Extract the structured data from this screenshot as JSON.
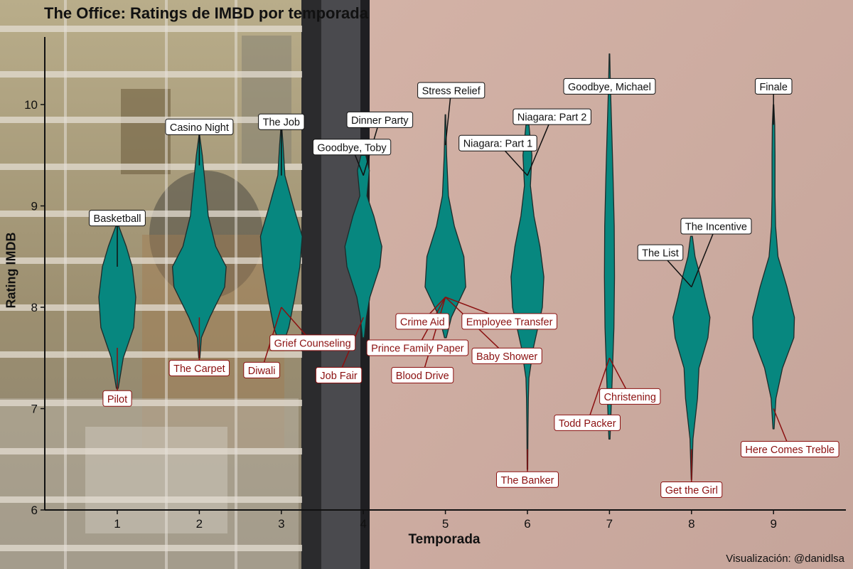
{
  "title": "The Office: Ratings de IMBD por temporada",
  "caption": "Visualización: @danidlsa",
  "colors": {
    "violin_fill": "#07877f",
    "violin_stroke": "#1d2b2a",
    "label_high": "#111111",
    "label_low": "#8b1010",
    "axis": "#111111"
  },
  "chart_data": {
    "type": "violin",
    "title": "The Office: Ratings de IMBD por temporada",
    "xlabel": "Temporada",
    "ylabel": "Rating IMDB",
    "ylim": [
      6,
      10.5
    ],
    "yticks": [
      6,
      7,
      8,
      9,
      10
    ],
    "categories": [
      "1",
      "2",
      "3",
      "4",
      "5",
      "6",
      "7",
      "8",
      "9"
    ],
    "series": [
      {
        "season": 1,
        "min": 7.2,
        "max": 8.8,
        "profile": [
          [
            7.2,
            0.03
          ],
          [
            7.5,
            0.2
          ],
          [
            7.8,
            0.55
          ],
          [
            8.1,
            0.62
          ],
          [
            8.4,
            0.5
          ],
          [
            8.6,
            0.3
          ],
          [
            8.8,
            0.05
          ]
        ]
      },
      {
        "season": 2,
        "min": 7.5,
        "max": 9.7,
        "profile": [
          [
            7.5,
            0.02
          ],
          [
            7.7,
            0.07
          ],
          [
            7.9,
            0.35
          ],
          [
            8.2,
            0.85
          ],
          [
            8.4,
            0.9
          ],
          [
            8.6,
            0.55
          ],
          [
            8.9,
            0.3
          ],
          [
            9.2,
            0.2
          ],
          [
            9.5,
            0.1
          ],
          [
            9.7,
            0.01
          ]
        ]
      },
      {
        "season": 3,
        "min": 7.6,
        "max": 9.8,
        "profile": [
          [
            7.6,
            0.02
          ],
          [
            7.8,
            0.25
          ],
          [
            8.1,
            0.45
          ],
          [
            8.4,
            0.62
          ],
          [
            8.7,
            0.7
          ],
          [
            9.0,
            0.4
          ],
          [
            9.3,
            0.12
          ],
          [
            9.6,
            0.06
          ],
          [
            9.8,
            0.01
          ]
        ]
      },
      {
        "season": 4,
        "min": 7.7,
        "max": 9.5,
        "profile": [
          [
            7.7,
            0.03
          ],
          [
            7.9,
            0.1
          ],
          [
            8.1,
            0.22
          ],
          [
            8.4,
            0.55
          ],
          [
            8.6,
            0.62
          ],
          [
            8.9,
            0.35
          ],
          [
            9.1,
            0.12
          ],
          [
            9.35,
            0.2
          ],
          [
            9.5,
            0.08
          ]
        ]
      },
      {
        "season": 5,
        "min": 7.7,
        "max": 9.9,
        "profile": [
          [
            7.7,
            0.03
          ],
          [
            7.9,
            0.2
          ],
          [
            8.2,
            0.68
          ],
          [
            8.5,
            0.62
          ],
          [
            8.8,
            0.3
          ],
          [
            9.1,
            0.1
          ],
          [
            9.5,
            0.04
          ],
          [
            9.9,
            0.01
          ]
        ]
      },
      {
        "season": 6,
        "min": 6.4,
        "max": 9.8,
        "profile": [
          [
            6.4,
            0.01
          ],
          [
            6.8,
            0.02
          ],
          [
            7.1,
            0.03
          ],
          [
            7.3,
            0.05
          ],
          [
            7.6,
            0.2
          ],
          [
            8.0,
            0.5
          ],
          [
            8.3,
            0.55
          ],
          [
            8.6,
            0.42
          ],
          [
            8.9,
            0.22
          ],
          [
            9.2,
            0.1
          ],
          [
            9.5,
            0.15
          ],
          [
            9.8,
            0.05
          ]
        ]
      },
      {
        "season": 7,
        "min": 6.7,
        "max": 10.5,
        "profile": [
          [
            6.7,
            0.02
          ],
          [
            7.2,
            0.08
          ],
          [
            7.8,
            0.15
          ],
          [
            8.3,
            0.17
          ],
          [
            8.8,
            0.16
          ],
          [
            9.3,
            0.12
          ],
          [
            9.7,
            0.08
          ],
          [
            10.2,
            0.03
          ],
          [
            10.5,
            0.01
          ]
        ]
      },
      {
        "season": 8,
        "min": 6.3,
        "max": 8.7,
        "profile": [
          [
            6.3,
            0.01
          ],
          [
            6.7,
            0.05
          ],
          [
            7.1,
            0.2
          ],
          [
            7.4,
            0.25
          ],
          [
            7.7,
            0.55
          ],
          [
            7.9,
            0.62
          ],
          [
            8.1,
            0.45
          ],
          [
            8.3,
            0.3
          ],
          [
            8.5,
            0.12
          ],
          [
            8.7,
            0.03
          ]
        ]
      },
      {
        "season": 9,
        "min": 6.8,
        "max": 10.0,
        "profile": [
          [
            6.8,
            0.02
          ],
          [
            7.1,
            0.08
          ],
          [
            7.4,
            0.3
          ],
          [
            7.7,
            0.68
          ],
          [
            7.9,
            0.7
          ],
          [
            8.2,
            0.45
          ],
          [
            8.5,
            0.15
          ],
          [
            8.8,
            0.07
          ],
          [
            9.1,
            0.05
          ],
          [
            9.5,
            0.05
          ],
          [
            9.8,
            0.04
          ],
          [
            10.0,
            0.01
          ]
        ]
      }
    ],
    "annotations": [
      {
        "text": "Basketball",
        "kind": "high",
        "points": [
          [
            1,
            8.4
          ]
        ],
        "label": [
          1,
          8.88
        ]
      },
      {
        "text": "Pilot",
        "kind": "low",
        "points": [
          [
            1,
            7.6
          ]
        ],
        "label": [
          1,
          7.1
        ]
      },
      {
        "text": "Casino Night",
        "kind": "high",
        "points": [
          [
            2,
            9.4
          ]
        ],
        "label": [
          2,
          9.78
        ]
      },
      {
        "text": "The Carpet",
        "kind": "low",
        "points": [
          [
            2,
            7.9
          ]
        ],
        "label": [
          2,
          7.4
        ]
      },
      {
        "text": "The Job",
        "kind": "high",
        "points": [
          [
            3,
            9.3
          ]
        ],
        "label": [
          3,
          9.83
        ]
      },
      {
        "text": "Grief Counseling",
        "kind": "low",
        "points": [
          [
            3,
            8.0
          ]
        ],
        "label": [
          3.38,
          7.65
        ]
      },
      {
        "text": "Diwali",
        "kind": "low",
        "points": [
          [
            3,
            8.0
          ]
        ],
        "label": [
          2.76,
          7.38
        ]
      },
      {
        "text": "Goodbye, Toby",
        "kind": "high",
        "points": [
          [
            4,
            9.3
          ]
        ],
        "label": [
          3.86,
          9.58
        ]
      },
      {
        "text": "Dinner Party",
        "kind": "high",
        "points": [
          [
            4,
            9.3
          ]
        ],
        "label": [
          4.2,
          9.85
        ]
      },
      {
        "text": "Job Fair",
        "kind": "low",
        "points": [
          [
            4,
            7.9
          ]
        ],
        "label": [
          3.7,
          7.33
        ]
      },
      {
        "text": "Stress Relief",
        "kind": "high",
        "points": [
          [
            5,
            9.6
          ]
        ],
        "label": [
          5.07,
          10.14
        ]
      },
      {
        "text": "Crime Aid",
        "kind": "low",
        "points": [
          [
            5,
            8.1
          ]
        ],
        "label": [
          4.72,
          7.86
        ]
      },
      {
        "text": "Prince Family Paper",
        "kind": "low",
        "points": [
          [
            5,
            8.1
          ]
        ],
        "label": [
          4.66,
          7.6
        ]
      },
      {
        "text": "Employee Transfer",
        "kind": "low",
        "points": [
          [
            5,
            8.1
          ]
        ],
        "label": [
          5.78,
          7.86
        ]
      },
      {
        "text": "Blood Drive",
        "kind": "low",
        "points": [
          [
            5,
            8.1
          ]
        ],
        "label": [
          4.72,
          7.33
        ]
      },
      {
        "text": "Baby Shower",
        "kind": "low",
        "points": [
          [
            5,
            8.1
          ]
        ],
        "label": [
          5.75,
          7.52
        ]
      },
      {
        "text": "Niagara: Part 1",
        "kind": "high",
        "points": [
          [
            6,
            9.3
          ]
        ],
        "label": [
          5.64,
          9.62
        ]
      },
      {
        "text": "Niagara: Part 2",
        "kind": "high",
        "points": [
          [
            6,
            9.3
          ]
        ],
        "label": [
          6.3,
          9.88
        ]
      },
      {
        "text": "The Banker",
        "kind": "low",
        "points": [
          [
            6,
            6.6
          ]
        ],
        "label": [
          6,
          6.3
        ]
      },
      {
        "text": "Goodbye, Michael",
        "kind": "high",
        "points": [
          [
            7,
            10.2
          ]
        ],
        "label": [
          7,
          10.18
        ]
      },
      {
        "text": "Christening",
        "kind": "low",
        "points": [
          [
            7,
            7.5
          ]
        ],
        "label": [
          7.25,
          7.12
        ]
      },
      {
        "text": "Todd Packer",
        "kind": "low",
        "points": [
          [
            7,
            7.5
          ]
        ],
        "label": [
          6.73,
          6.86
        ]
      },
      {
        "text": "The List",
        "kind": "high",
        "points": [
          [
            8,
            8.2
          ]
        ],
        "label": [
          7.62,
          8.54
        ]
      },
      {
        "text": "The Incentive",
        "kind": "high",
        "points": [
          [
            8,
            8.2
          ]
        ],
        "label": [
          8.3,
          8.8
        ]
      },
      {
        "text": "Get the Girl",
        "kind": "low",
        "points": [
          [
            8,
            6.6
          ]
        ],
        "label": [
          8,
          6.2
        ]
      },
      {
        "text": "Finale",
        "kind": "high",
        "points": [
          [
            9,
            9.8
          ]
        ],
        "label": [
          9,
          10.18
        ]
      },
      {
        "text": "Here Comes Treble",
        "kind": "low",
        "points": [
          [
            9,
            7.0
          ]
        ],
        "label": [
          9.2,
          6.6
        ]
      }
    ]
  }
}
